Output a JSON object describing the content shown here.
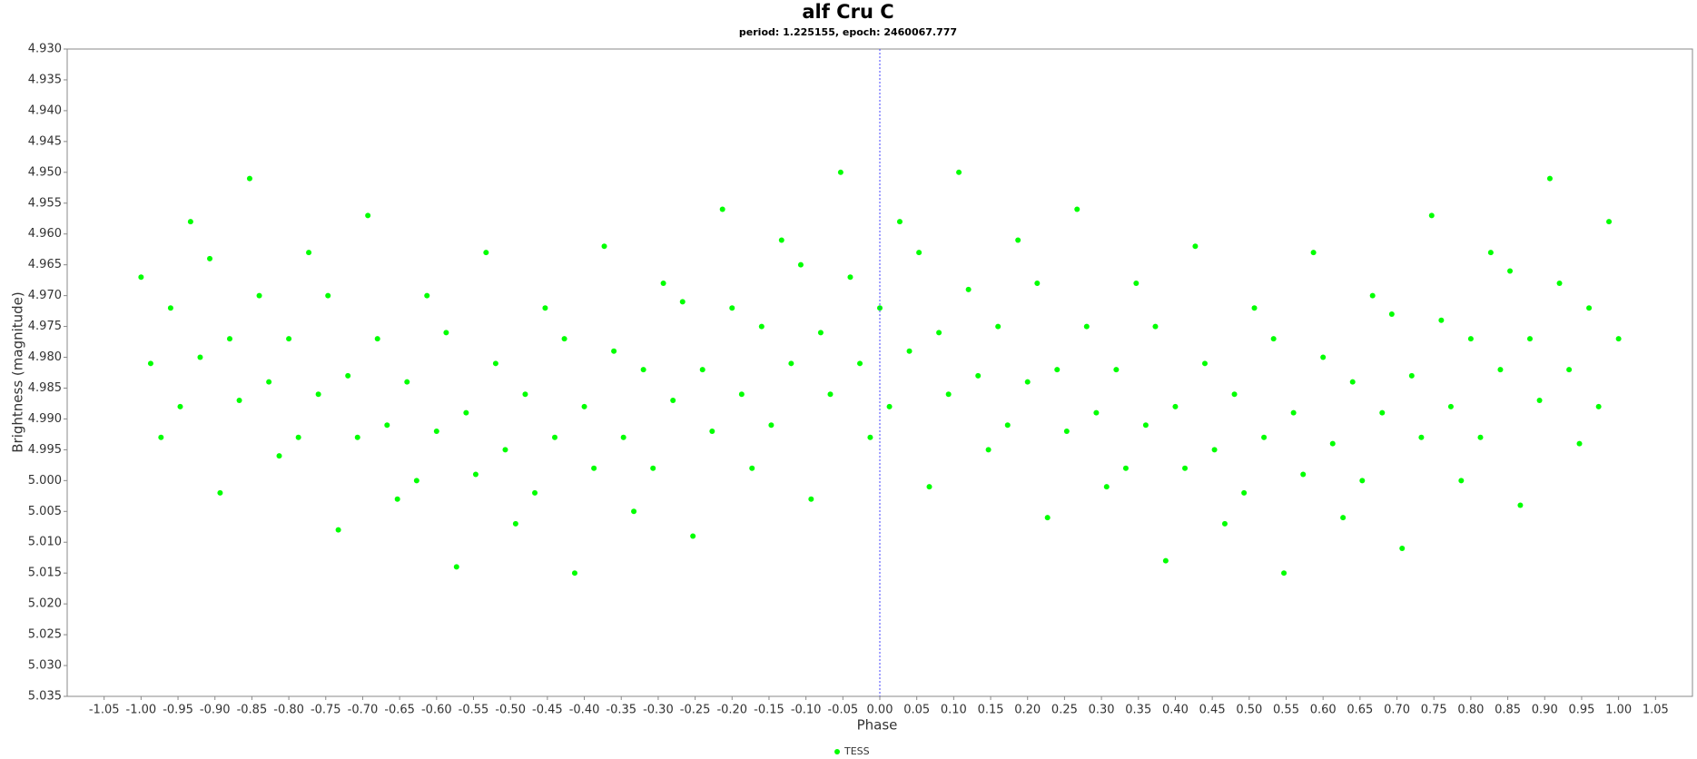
{
  "chart_data": {
    "type": "scatter",
    "title": "alf Cru C",
    "subtitle": "period: 1.225155, epoch: 2460067.777",
    "x_label": "Phase",
    "y_label": "Brightness (magnitude)",
    "xlim": [
      -1.1,
      1.1
    ],
    "ylim": [
      4.93,
      5.035
    ],
    "y_inverted": true,
    "marker_line_x": 0,
    "xticks": [
      {
        "value": -1.05,
        "label": "-1.05"
      },
      {
        "value": -1.0,
        "label": "-1.00"
      },
      {
        "value": -0.95,
        "label": "-0.95"
      },
      {
        "value": -0.9,
        "label": "-0.90"
      },
      {
        "value": -0.85,
        "label": "-0.85"
      },
      {
        "value": -0.8,
        "label": "-0.80"
      },
      {
        "value": -0.75,
        "label": "-0.75"
      },
      {
        "value": -0.7,
        "label": "-0.70"
      },
      {
        "value": -0.65,
        "label": "-0.65"
      },
      {
        "value": -0.6,
        "label": "-0.60"
      },
      {
        "value": -0.55,
        "label": "-0.55"
      },
      {
        "value": -0.5,
        "label": "-0.50"
      },
      {
        "value": -0.45,
        "label": "-0.45"
      },
      {
        "value": -0.4,
        "label": "-0.40"
      },
      {
        "value": -0.35,
        "label": "-0.35"
      },
      {
        "value": -0.3,
        "label": "-0.30"
      },
      {
        "value": -0.25,
        "label": "-0.25"
      },
      {
        "value": -0.2,
        "label": "-0.20"
      },
      {
        "value": -0.15,
        "label": "-0.15"
      },
      {
        "value": -0.1,
        "label": "-0.10"
      },
      {
        "value": -0.05,
        "label": "-0.05"
      },
      {
        "value": 0,
        "label": "0.00"
      },
      {
        "value": 0.05,
        "label": "0.05"
      },
      {
        "value": 0.1,
        "label": "0.10"
      },
      {
        "value": 0.15,
        "label": "0.15"
      },
      {
        "value": 0.2,
        "label": "0.20"
      },
      {
        "value": 0.25,
        "label": "0.25"
      },
      {
        "value": 0.3,
        "label": "0.30"
      },
      {
        "value": 0.35,
        "label": "0.35"
      },
      {
        "value": 0.4,
        "label": "0.40"
      },
      {
        "value": 0.45,
        "label": "0.45"
      },
      {
        "value": 0.5,
        "label": "0.50"
      },
      {
        "value": 0.55,
        "label": "0.55"
      },
      {
        "value": 0.6,
        "label": "0.60"
      },
      {
        "value": 0.65,
        "label": "0.65"
      },
      {
        "value": 0.7,
        "label": "0.70"
      },
      {
        "value": 0.75,
        "label": "0.75"
      },
      {
        "value": 0.8,
        "label": "0.80"
      },
      {
        "value": 0.85,
        "label": "0.85"
      },
      {
        "value": 0.9,
        "label": "0.90"
      },
      {
        "value": 0.95,
        "label": "0.95"
      },
      {
        "value": 1.0,
        "label": "1.00"
      },
      {
        "value": 1.05,
        "label": "1.05"
      }
    ],
    "yticks": [
      {
        "value": 4.93,
        "label": "4.930"
      },
      {
        "value": 4.935,
        "label": "4.935"
      },
      {
        "value": 4.94,
        "label": "4.940"
      },
      {
        "value": 4.945,
        "label": "4.945"
      },
      {
        "value": 4.95,
        "label": "4.950"
      },
      {
        "value": 4.955,
        "label": "4.955"
      },
      {
        "value": 4.96,
        "label": "4.960"
      },
      {
        "value": 4.965,
        "label": "4.965"
      },
      {
        "value": 4.97,
        "label": "4.970"
      },
      {
        "value": 4.975,
        "label": "4.975"
      },
      {
        "value": 4.98,
        "label": "4.980"
      },
      {
        "value": 4.985,
        "label": "4.985"
      },
      {
        "value": 4.99,
        "label": "4.990"
      },
      {
        "value": 4.995,
        "label": "4.995"
      },
      {
        "value": 5.0,
        "label": "5.000"
      },
      {
        "value": 5.005,
        "label": "5.005"
      },
      {
        "value": 5.01,
        "label": "5.010"
      },
      {
        "value": 5.015,
        "label": "5.015"
      },
      {
        "value": 5.02,
        "label": "5.020"
      },
      {
        "value": 5.025,
        "label": "5.025"
      },
      {
        "value": 5.03,
        "label": "5.030"
      },
      {
        "value": 5.035,
        "label": "5.035"
      }
    ],
    "series": [
      {
        "name": "TESS",
        "color": "#00ff00",
        "x": [
          -1.0,
          -0.987,
          -0.973,
          -0.96,
          -0.947,
          -0.933,
          -0.92,
          -0.907,
          -0.893,
          -0.88,
          -0.867,
          -0.853,
          -0.84,
          -0.827,
          -0.813,
          -0.8,
          -0.787,
          -0.773,
          -0.76,
          -0.747,
          -0.733,
          -0.72,
          -0.707,
          -0.693,
          -0.68,
          -0.667,
          -0.653,
          -0.64,
          -0.627,
          -0.613,
          -0.6,
          -0.587,
          -0.573,
          -0.56,
          -0.547,
          -0.533,
          -0.52,
          -0.507,
          -0.493,
          -0.48,
          -0.467,
          -0.453,
          -0.44,
          -0.427,
          -0.413,
          -0.4,
          -0.387,
          -0.373,
          -0.36,
          -0.347,
          -0.333,
          -0.32,
          -0.307,
          -0.293,
          -0.28,
          -0.267,
          -0.253,
          -0.24,
          -0.227,
          -0.213,
          -0.2,
          -0.187,
          -0.173,
          -0.16,
          -0.147,
          -0.133,
          -0.12,
          -0.107,
          -0.093,
          -0.08,
          -0.067,
          -0.053,
          -0.04,
          -0.027,
          -0.013,
          0.0,
          0.013,
          0.027,
          0.04,
          0.053,
          0.067,
          0.08,
          0.093,
          0.107,
          0.12,
          0.133,
          0.147,
          0.16,
          0.173,
          0.187,
          0.2,
          0.213,
          0.227,
          0.24,
          0.253,
          0.267,
          0.28,
          0.293,
          0.307,
          0.32,
          0.333,
          0.347,
          0.36,
          0.373,
          0.387,
          0.4,
          0.413,
          0.427,
          0.44,
          0.453,
          0.467,
          0.48,
          0.493,
          0.507,
          0.52,
          0.533,
          0.547,
          0.56,
          0.573,
          0.587,
          0.6,
          0.613,
          0.627,
          0.64,
          0.653,
          0.667,
          0.68,
          0.693,
          0.707,
          0.72,
          0.733,
          0.747,
          0.76,
          0.773,
          0.787,
          0.8,
          0.813,
          0.827,
          0.84,
          0.853,
          0.867,
          0.88,
          0.893,
          0.907,
          0.92,
          0.933,
          0.947,
          0.96,
          0.973,
          0.987,
          1.0
        ],
        "y": [
          4.967,
          4.981,
          4.993,
          4.972,
          4.988,
          4.958,
          4.98,
          4.964,
          5.002,
          4.977,
          4.987,
          4.951,
          4.97,
          4.984,
          4.996,
          4.977,
          4.993,
          4.963,
          4.986,
          4.97,
          5.008,
          4.983,
          4.993,
          4.957,
          4.977,
          4.991,
          5.003,
          4.984,
          5.0,
          4.97,
          4.992,
          4.976,
          5.014,
          4.989,
          4.999,
          4.963,
          4.981,
          4.995,
          5.007,
          4.986,
          5.002,
          4.972,
          4.993,
          4.977,
          5.015,
          4.988,
          4.998,
          4.962,
          4.979,
          4.993,
          5.005,
          4.982,
          4.998,
          4.968,
          4.987,
          4.971,
          5.009,
          4.982,
          4.992,
          4.956,
          4.972,
          4.986,
          4.998,
          4.975,
          4.991,
          4.961,
          4.981,
          4.965,
          5.003,
          4.976,
          4.986,
          4.95,
          4.967,
          4.981,
          4.993,
          4.972,
          4.988,
          4.958,
          4.979,
          4.963,
          5.001,
          4.976,
          4.986,
          4.95,
          4.969,
          4.983,
          4.995,
          4.975,
          4.991,
          4.961,
          4.984,
          4.968,
          5.006,
          4.982,
          4.992,
          4.956,
          4.975,
          4.989,
          5.001,
          4.982,
          4.998,
          4.968,
          4.991,
          4.975,
          5.013,
          4.988,
          4.998,
          4.962,
          4.981,
          4.995,
          5.007,
          4.986,
          5.002,
          4.972,
          4.993,
          4.977,
          5.015,
          4.989,
          4.999,
          4.963,
          4.98,
          4.994,
          5.006,
          4.984,
          5.0,
          4.97,
          4.989,
          4.973,
          5.011,
          4.983,
          4.993,
          4.957,
          4.974,
          4.988,
          5.0,
          4.977,
          4.993,
          4.963,
          4.982,
          4.966,
          5.004,
          4.977,
          4.987,
          4.951,
          4.968,
          4.982,
          4.994,
          4.972,
          4.988,
          4.958,
          4.977
        ]
      }
    ]
  }
}
